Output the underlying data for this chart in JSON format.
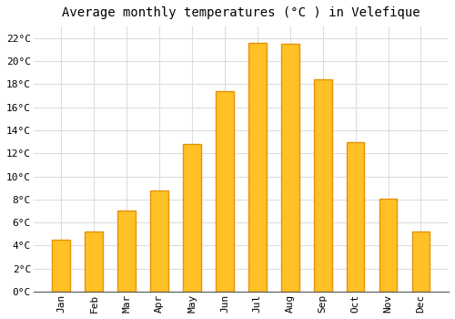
{
  "months": [
    "Jan",
    "Feb",
    "Mar",
    "Apr",
    "May",
    "Jun",
    "Jul",
    "Aug",
    "Sep",
    "Oct",
    "Nov",
    "Dec"
  ],
  "temperatures": [
    4.5,
    5.2,
    7.0,
    8.8,
    12.8,
    17.4,
    21.6,
    21.5,
    18.4,
    13.0,
    8.1,
    5.2
  ],
  "bar_color_main": "#FFC125",
  "bar_color_edge": "#E8920A",
  "title": "Average monthly temperatures (°C ) in Velefique",
  "ytick_labels": [
    "0°C",
    "2°C",
    "4°C",
    "6°C",
    "8°C",
    "10°C",
    "12°C",
    "14°C",
    "16°C",
    "18°C",
    "20°C",
    "22°C"
  ],
  "ytick_values": [
    0,
    2,
    4,
    6,
    8,
    10,
    12,
    14,
    16,
    18,
    20,
    22
  ],
  "ylim": [
    0,
    23
  ],
  "background_color": "#ffffff",
  "grid_color": "#dddddd",
  "title_fontsize": 10,
  "tick_fontsize": 8,
  "font_family": "monospace",
  "bar_width": 0.55
}
